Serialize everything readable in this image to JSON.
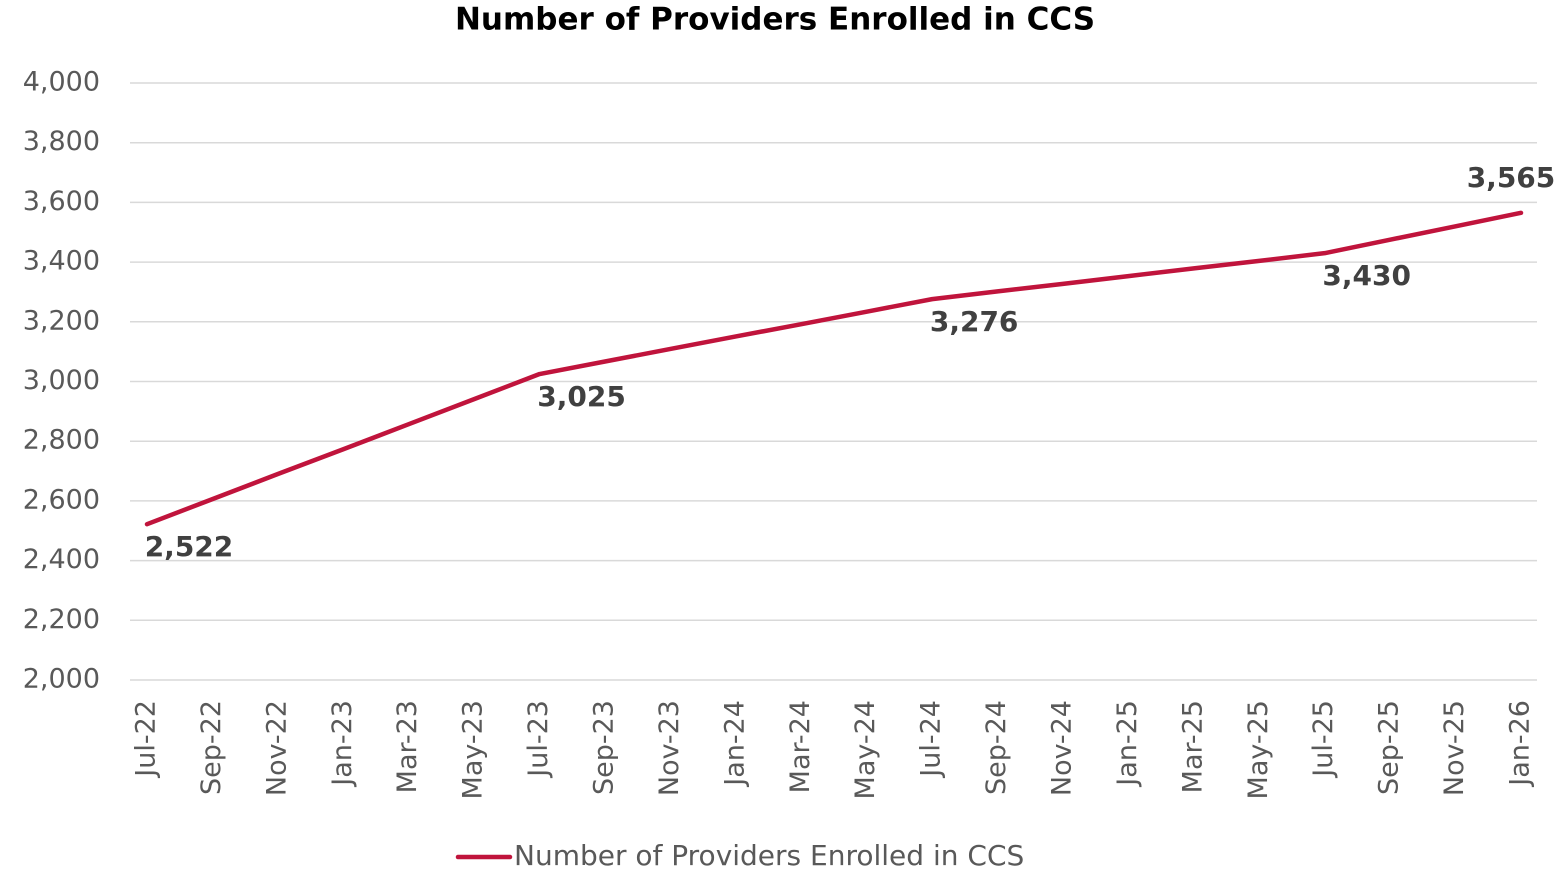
{
  "chart_data": {
    "type": "line",
    "title": "Number of Providers Enrolled in CCS",
    "categories": [
      "Jul-22",
      "Sep-22",
      "Nov-22",
      "Jan-23",
      "Mar-23",
      "May-23",
      "Jul-23",
      "Sep-23",
      "Nov-23",
      "Jan-24",
      "Mar-24",
      "May-24",
      "Jul-24",
      "Sep-24",
      "Nov-24",
      "Jan-25",
      "Mar-25",
      "May-25",
      "Jul-25",
      "Sep-25",
      "Nov-25",
      "Jan-26"
    ],
    "series": [
      {
        "name": "Number of Providers Enrolled in CCS",
        "color": "#c0143c",
        "values": [
          2522,
          2606,
          2690,
          2773,
          2857,
          2941,
          3025,
          3067,
          3109,
          3151,
          3192,
          3234,
          3276,
          3302,
          3327,
          3353,
          3379,
          3404,
          3430,
          3475,
          3520,
          3565
        ],
        "value_labels": [
          "2,522",
          null,
          null,
          null,
          null,
          null,
          "3,025",
          null,
          null,
          null,
          null,
          null,
          "3,276",
          null,
          null,
          null,
          null,
          null,
          "3,430",
          null,
          null,
          "3,565"
        ]
      }
    ],
    "ylim": [
      2000,
      4000
    ],
    "yticks": [
      {
        "value": 2000,
        "label": "2,000"
      },
      {
        "value": 2200,
        "label": "2,200"
      },
      {
        "value": 2400,
        "label": "2,400"
      },
      {
        "value": 2600,
        "label": "2,600"
      },
      {
        "value": 2800,
        "label": "2,800"
      },
      {
        "value": 3000,
        "label": "3,000"
      },
      {
        "value": 3200,
        "label": "3,200"
      },
      {
        "value": 3400,
        "label": "3,400"
      },
      {
        "value": 3600,
        "label": "3,600"
      },
      {
        "value": 3800,
        "label": "3,800"
      },
      {
        "value": 4000,
        "label": "4,000"
      }
    ],
    "grid": true,
    "legend": "bottom"
  }
}
